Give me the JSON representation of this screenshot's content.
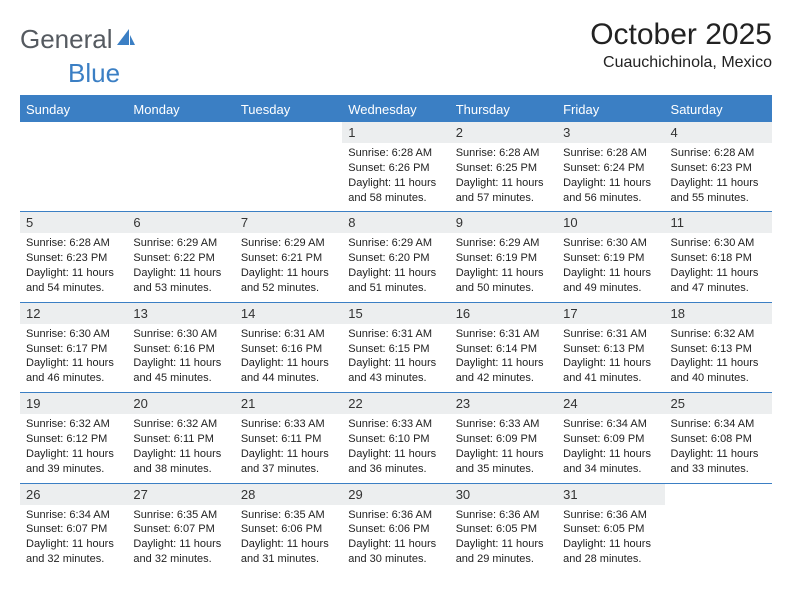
{
  "brand": {
    "part1": "General",
    "part2": "Blue"
  },
  "title": "October 2025",
  "location": "Cuauchichinola, Mexico",
  "colors": {
    "accent": "#3b7fc4",
    "header_bg": "#3b7fc4",
    "header_text": "#ffffff",
    "daynum_bg": "#eceeef",
    "text": "#222222",
    "background": "#ffffff"
  },
  "day_headers": [
    "Sunday",
    "Monday",
    "Tuesday",
    "Wednesday",
    "Thursday",
    "Friday",
    "Saturday"
  ],
  "weeks": [
    [
      null,
      null,
      null,
      {
        "n": "1",
        "sr": "6:28 AM",
        "ss": "6:26 PM",
        "dl": "11 hours and 58 minutes."
      },
      {
        "n": "2",
        "sr": "6:28 AM",
        "ss": "6:25 PM",
        "dl": "11 hours and 57 minutes."
      },
      {
        "n": "3",
        "sr": "6:28 AM",
        "ss": "6:24 PM",
        "dl": "11 hours and 56 minutes."
      },
      {
        "n": "4",
        "sr": "6:28 AM",
        "ss": "6:23 PM",
        "dl": "11 hours and 55 minutes."
      }
    ],
    [
      {
        "n": "5",
        "sr": "6:28 AM",
        "ss": "6:23 PM",
        "dl": "11 hours and 54 minutes."
      },
      {
        "n": "6",
        "sr": "6:29 AM",
        "ss": "6:22 PM",
        "dl": "11 hours and 53 minutes."
      },
      {
        "n": "7",
        "sr": "6:29 AM",
        "ss": "6:21 PM",
        "dl": "11 hours and 52 minutes."
      },
      {
        "n": "8",
        "sr": "6:29 AM",
        "ss": "6:20 PM",
        "dl": "11 hours and 51 minutes."
      },
      {
        "n": "9",
        "sr": "6:29 AM",
        "ss": "6:19 PM",
        "dl": "11 hours and 50 minutes."
      },
      {
        "n": "10",
        "sr": "6:30 AM",
        "ss": "6:19 PM",
        "dl": "11 hours and 49 minutes."
      },
      {
        "n": "11",
        "sr": "6:30 AM",
        "ss": "6:18 PM",
        "dl": "11 hours and 47 minutes."
      }
    ],
    [
      {
        "n": "12",
        "sr": "6:30 AM",
        "ss": "6:17 PM",
        "dl": "11 hours and 46 minutes."
      },
      {
        "n": "13",
        "sr": "6:30 AM",
        "ss": "6:16 PM",
        "dl": "11 hours and 45 minutes."
      },
      {
        "n": "14",
        "sr": "6:31 AM",
        "ss": "6:16 PM",
        "dl": "11 hours and 44 minutes."
      },
      {
        "n": "15",
        "sr": "6:31 AM",
        "ss": "6:15 PM",
        "dl": "11 hours and 43 minutes."
      },
      {
        "n": "16",
        "sr": "6:31 AM",
        "ss": "6:14 PM",
        "dl": "11 hours and 42 minutes."
      },
      {
        "n": "17",
        "sr": "6:31 AM",
        "ss": "6:13 PM",
        "dl": "11 hours and 41 minutes."
      },
      {
        "n": "18",
        "sr": "6:32 AM",
        "ss": "6:13 PM",
        "dl": "11 hours and 40 minutes."
      }
    ],
    [
      {
        "n": "19",
        "sr": "6:32 AM",
        "ss": "6:12 PM",
        "dl": "11 hours and 39 minutes."
      },
      {
        "n": "20",
        "sr": "6:32 AM",
        "ss": "6:11 PM",
        "dl": "11 hours and 38 minutes."
      },
      {
        "n": "21",
        "sr": "6:33 AM",
        "ss": "6:11 PM",
        "dl": "11 hours and 37 minutes."
      },
      {
        "n": "22",
        "sr": "6:33 AM",
        "ss": "6:10 PM",
        "dl": "11 hours and 36 minutes."
      },
      {
        "n": "23",
        "sr": "6:33 AM",
        "ss": "6:09 PM",
        "dl": "11 hours and 35 minutes."
      },
      {
        "n": "24",
        "sr": "6:34 AM",
        "ss": "6:09 PM",
        "dl": "11 hours and 34 minutes."
      },
      {
        "n": "25",
        "sr": "6:34 AM",
        "ss": "6:08 PM",
        "dl": "11 hours and 33 minutes."
      }
    ],
    [
      {
        "n": "26",
        "sr": "6:34 AM",
        "ss": "6:07 PM",
        "dl": "11 hours and 32 minutes."
      },
      {
        "n": "27",
        "sr": "6:35 AM",
        "ss": "6:07 PM",
        "dl": "11 hours and 32 minutes."
      },
      {
        "n": "28",
        "sr": "6:35 AM",
        "ss": "6:06 PM",
        "dl": "11 hours and 31 minutes."
      },
      {
        "n": "29",
        "sr": "6:36 AM",
        "ss": "6:06 PM",
        "dl": "11 hours and 30 minutes."
      },
      {
        "n": "30",
        "sr": "6:36 AM",
        "ss": "6:05 PM",
        "dl": "11 hours and 29 minutes."
      },
      {
        "n": "31",
        "sr": "6:36 AM",
        "ss": "6:05 PM",
        "dl": "11 hours and 28 minutes."
      },
      null
    ]
  ],
  "labels": {
    "sunrise": "Sunrise:",
    "sunset": "Sunset:",
    "daylight": "Daylight:"
  },
  "typography": {
    "title_fontsize": 30,
    "location_fontsize": 16,
    "header_fontsize": 13,
    "cell_fontsize": 11
  }
}
